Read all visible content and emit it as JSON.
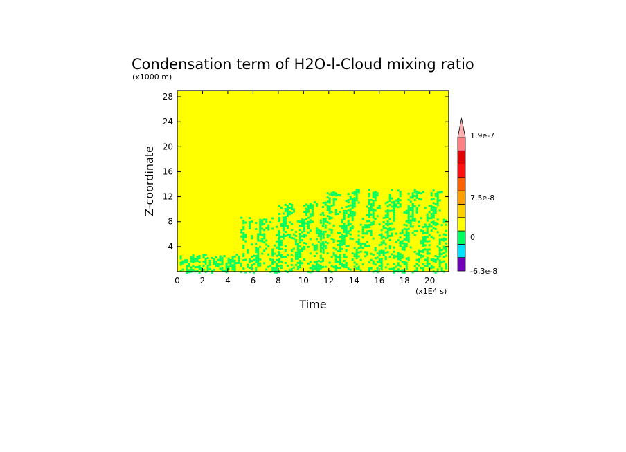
{
  "chart_data": {
    "type": "heatmap",
    "title": "Condensation term of H2O-l-Cloud mixing ratio",
    "xlabel": "Time",
    "ylabel": "Z-coordinate",
    "x_scale_note": "(x1E4 s)",
    "y_scale_note": "(x1000 m)",
    "xlim": [
      0,
      21.5
    ],
    "ylim": [
      0,
      29
    ],
    "x_ticks": [
      0,
      2,
      4,
      6,
      8,
      10,
      12,
      14,
      16,
      18,
      20
    ],
    "y_ticks": [
      4,
      8,
      12,
      16,
      20,
      24,
      28
    ],
    "background_level_color": "#ffff00",
    "regions": [
      {
        "level": "low-positive",
        "color": "#00ff60",
        "x_range": [
          0.2,
          5.0
        ],
        "z_range": [
          0.0,
          2.6
        ]
      },
      {
        "level": "low-positive",
        "color": "#00ff60",
        "x_range": [
          5.0,
          8.0
        ],
        "z_range": [
          0.0,
          8.5
        ]
      },
      {
        "level": "low-positive",
        "color": "#00ff60",
        "x_range": [
          8.0,
          11.5
        ],
        "z_range": [
          0.0,
          11.0
        ]
      },
      {
        "level": "low-positive",
        "color": "#00ff60",
        "x_range": [
          11.5,
          21.3
        ],
        "z_range": [
          0.0,
          13.0
        ]
      }
    ],
    "colorbar": {
      "levels": [
        {
          "color": "#7000b8"
        },
        {
          "color": "#00e0ff"
        },
        {
          "color": "#00ff60"
        },
        {
          "color": "#ffff00"
        },
        {
          "color": "#ffd000"
        },
        {
          "color": "#ffa000"
        },
        {
          "color": "#ff6000"
        },
        {
          "color": "#ff1010"
        },
        {
          "color": "#e00000"
        },
        {
          "color": "#ff8080"
        }
      ],
      "extend_top_color": "#ffb0b0",
      "labels": [
        "1.9e-7",
        "7.5e-8",
        "0",
        "-6.3e-8"
      ],
      "label_levels": [
        190,
        75,
        0,
        -63
      ]
    }
  }
}
